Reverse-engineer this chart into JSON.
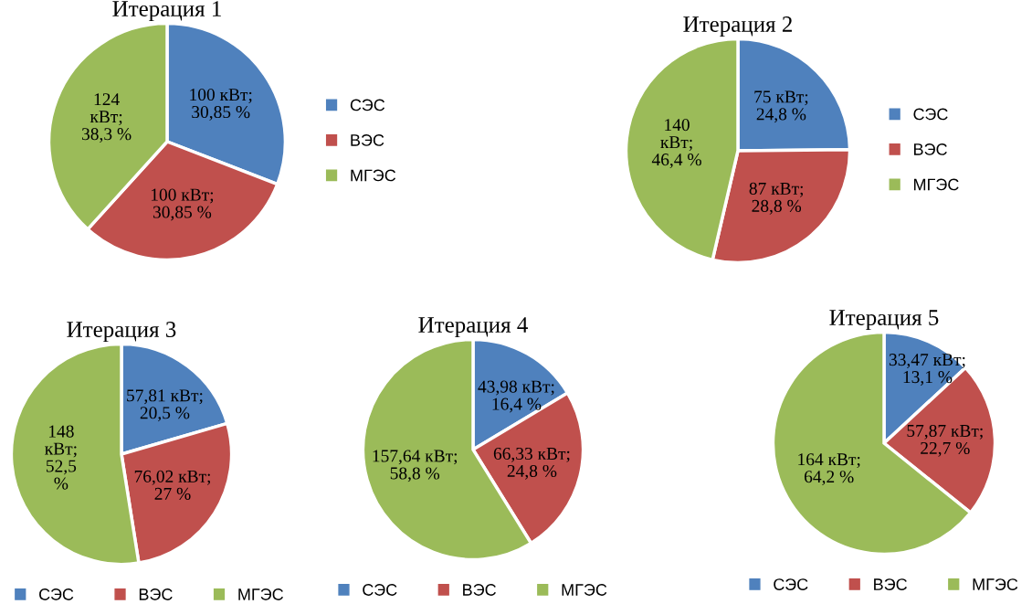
{
  "chart_data": [
    {
      "type": "pie",
      "title": "Итерация 1",
      "categories": [
        "СЭС",
        "ВЭС",
        "МГЭС"
      ],
      "values": [
        100,
        100,
        124
      ],
      "colors": [
        "#4f81bd",
        "#c0504d",
        "#9bbb59"
      ],
      "value_labels": [
        "100 кВт;\n30,85 %",
        "100 кВт;\n30,85 %",
        "124\nкВт;\n38,3 %"
      ],
      "legend": "right"
    },
    {
      "type": "pie",
      "title": "Итерация 2",
      "categories": [
        "СЭС",
        "ВЭС",
        "МГЭС"
      ],
      "values": [
        75,
        87,
        140
      ],
      "colors": [
        "#4f81bd",
        "#c0504d",
        "#9bbb59"
      ],
      "value_labels": [
        "75 кВт;\n24,8 %",
        "87 кВт;\n28,8 %",
        "140\nкВт;\n46,4 %"
      ],
      "legend": "right"
    },
    {
      "type": "pie",
      "title": "Итерация 3",
      "categories": [
        "СЭС",
        "ВЭС",
        "МГЭС"
      ],
      "values": [
        57.81,
        76.02,
        148
      ],
      "colors": [
        "#4f81bd",
        "#c0504d",
        "#9bbb59"
      ],
      "value_labels": [
        "57,81 кВт;\n20,5 %",
        "76,02 кВт;\n27 %",
        "148\nкВт;\n52,5\n%"
      ],
      "legend": "bottom"
    },
    {
      "type": "pie",
      "title": "Итерация 4",
      "categories": [
        "СЭС",
        "ВЭС",
        "МГЭС"
      ],
      "values": [
        43.98,
        66.33,
        157.64
      ],
      "colors": [
        "#4f81bd",
        "#c0504d",
        "#9bbb59"
      ],
      "value_labels": [
        "43,98 кВт;\n16,4 %",
        "66,33 кВт;\n24,8 %",
        "157,64 кВт;\n58,8 %"
      ],
      "legend": "bottom"
    },
    {
      "type": "pie",
      "title": "Итерация 5",
      "categories": [
        "СЭС",
        "ВЭС",
        "МГЭС"
      ],
      "values": [
        33.47,
        57.87,
        164
      ],
      "colors": [
        "#4f81bd",
        "#c0504d",
        "#9bbb59"
      ],
      "value_labels": [
        "33,47 кВт;\n13,1 %",
        "57,87 кВт;\n22,7 %",
        "164 кВт;\n64,2 %"
      ],
      "legend": "bottom"
    }
  ]
}
